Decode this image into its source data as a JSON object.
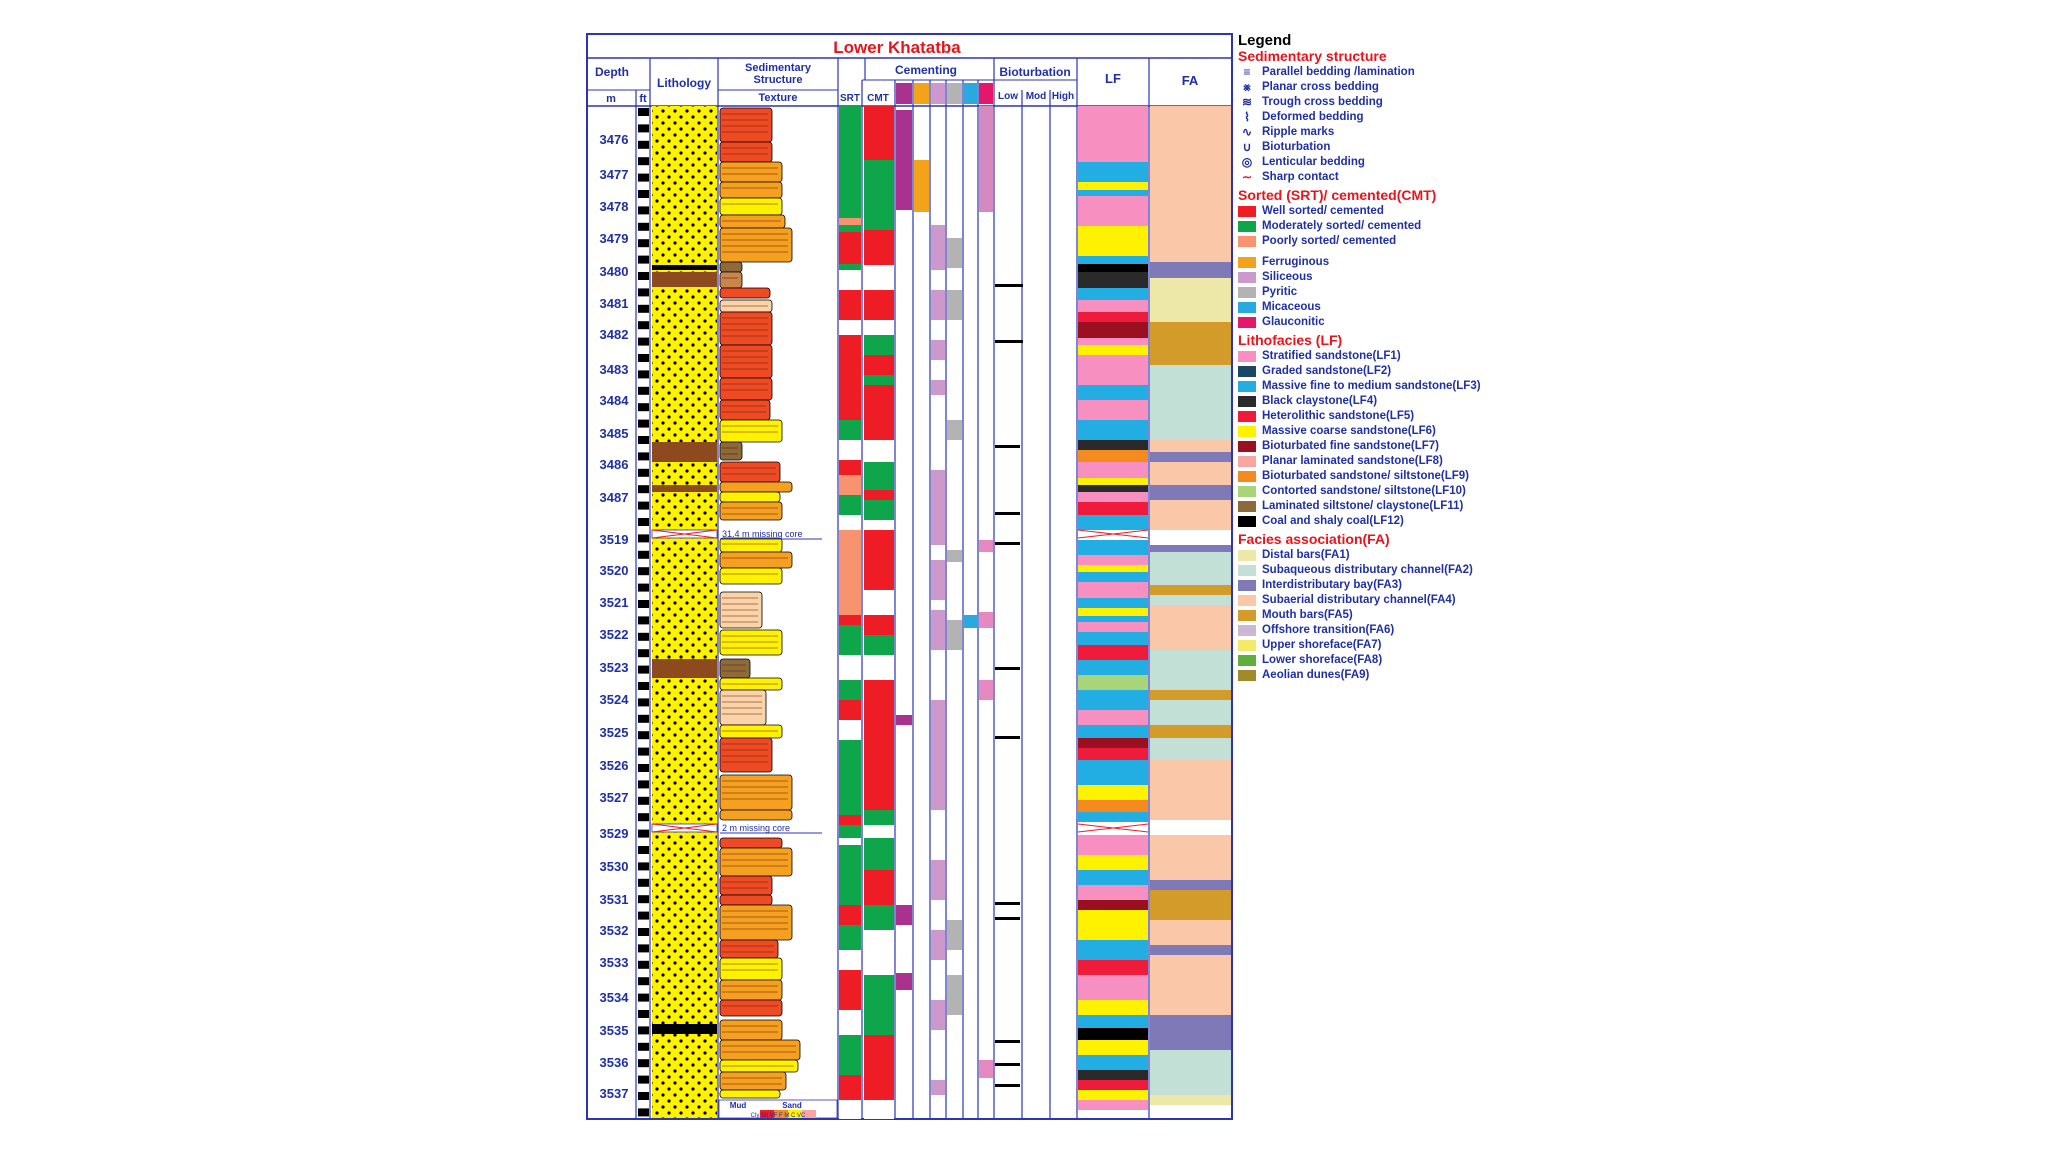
{
  "title": "Lower Khatatba",
  "headers": {
    "depth": "Depth",
    "depth_m": "m",
    "depth_ft": "ft",
    "lithology": "Lithology",
    "sed_structure": "Sedimentary Structure",
    "texture": "Texture",
    "srt": "SRT",
    "cmt": "CMT",
    "cementing": "Cementing",
    "bioturbation": "Bioturbation",
    "bio_low": "Low",
    "bio_mod": "Mod",
    "bio_high": "High",
    "lf": "LF",
    "fa": "FA"
  },
  "texture_scale": {
    "mud": "Mud",
    "sand": "Sand",
    "ticks": "Cly Slt VF F M C VC"
  },
  "missing_core": [
    "31.4 m missing core",
    "2 m missing core"
  ],
  "depth_labels": [
    "3476",
    "3477",
    "3478",
    "3479",
    "3480",
    "3481",
    "3482",
    "3483",
    "3484",
    "3485",
    "3486",
    "3487",
    "3519",
    "3520",
    "3521",
    "3522",
    "3523",
    "3524",
    "3525",
    "3526",
    "3527",
    "3529",
    "3530",
    "3531",
    "3532",
    "3533",
    "3534",
    "3535",
    "3536",
    "3537"
  ],
  "legend": {
    "title": "Legend",
    "sed_heading": "Sedimentary structure",
    "sed_items": [
      {
        "label": "Parallel bedding /lamination",
        "icon": "parallel-bedding-icon"
      },
      {
        "label": "Planar cross bedding",
        "icon": "planar-cross-icon"
      },
      {
        "label": "Trough cross bedding",
        "icon": "trough-cross-icon"
      },
      {
        "label": "Deformed bedding",
        "icon": "deformed-bedding-icon"
      },
      {
        "label": "Ripple marks",
        "icon": "ripple-icon"
      },
      {
        "label": "Bioturbation",
        "icon": "bioturbation-icon"
      },
      {
        "label": "Lenticular bedding",
        "icon": "lenticular-icon"
      },
      {
        "label": "Sharp contact",
        "icon": "sharp-contact-icon"
      }
    ],
    "sort_heading": "Sorted (SRT)/ cemented(CMT)",
    "sort_items": [
      {
        "label": "Well sorted/ cemented",
        "color": "#ee1c24"
      },
      {
        "label": "Moderately sorted/ cemented",
        "color": "#0fa64b"
      },
      {
        "label": "Poorly sorted/ cemented",
        "color": "#f7936f"
      }
    ],
    "cement_items": [
      {
        "label": "Ferruginous",
        "color": "#f2a31b"
      },
      {
        "label": "Siliceous",
        "color": "#cc99cc"
      },
      {
        "label": "Pyritic",
        "color": "#b3b3b3"
      },
      {
        "label": "Micaceous",
        "color": "#29a9e0"
      },
      {
        "label": "Glauconitic",
        "color": "#e5176a"
      }
    ],
    "lf_heading": "Lithofacies (LF)",
    "lf_items": [
      {
        "label": "Stratified sandstone(LF1)",
        "color": "#f78fc1"
      },
      {
        "label": "Graded sandstone(LF2)",
        "color": "#1c4666"
      },
      {
        "label": "Massive fine to medium sandstone(LF3)",
        "color": "#22aee3"
      },
      {
        "label": "Black claystone(LF4)",
        "color": "#2a2a2a"
      },
      {
        "label": "Heterolithic sandstone(LF5)",
        "color": "#ee1c3a"
      },
      {
        "label": "Massive coarse sandstone(LF6)",
        "color": "#fff200"
      },
      {
        "label": "Bioturbated fine sandstone(LF7)",
        "color": "#9b1020"
      },
      {
        "label": "Planar laminated sandstone(LF8)",
        "color": "#f7a6a0"
      },
      {
        "label": "Bioturbated sandstone/ siltstone(LF9)",
        "color": "#f58a1f"
      },
      {
        "label": "Contorted sandstone/ siltstone(LF10)",
        "color": "#a8d47a"
      },
      {
        "label": "Laminated siltstone/ claystone(LF11)",
        "color": "#8c6a3a"
      },
      {
        "label": "Coal and shaly coal(LF12)",
        "color": "#000000"
      }
    ],
    "fa_heading": "Facies association(FA)",
    "fa_items": [
      {
        "label": "Distal bars(FA1)",
        "color": "#eee8a8"
      },
      {
        "label": "Subaqueous distributary channel(FA2)",
        "color": "#c2e0d6"
      },
      {
        "label": "Interdistributary bay(FA3)",
        "color": "#8079b8"
      },
      {
        "label": "Subaerial distributary channel(FA4)",
        "color": "#fbc7a9"
      },
      {
        "label": "Mouth bars(FA5)",
        "color": "#d29b2a"
      },
      {
        "label": "Offshore transition(FA6)",
        "color": "#c9b8d8"
      },
      {
        "label": "Upper shoreface(FA7)",
        "color": "#f3ea6a"
      },
      {
        "label": "Lower shoreface(FA8)",
        "color": "#5fae3f"
      },
      {
        "label": "Aeolian dunes(FA9)",
        "color": "#a08a2a"
      }
    ]
  }
}
